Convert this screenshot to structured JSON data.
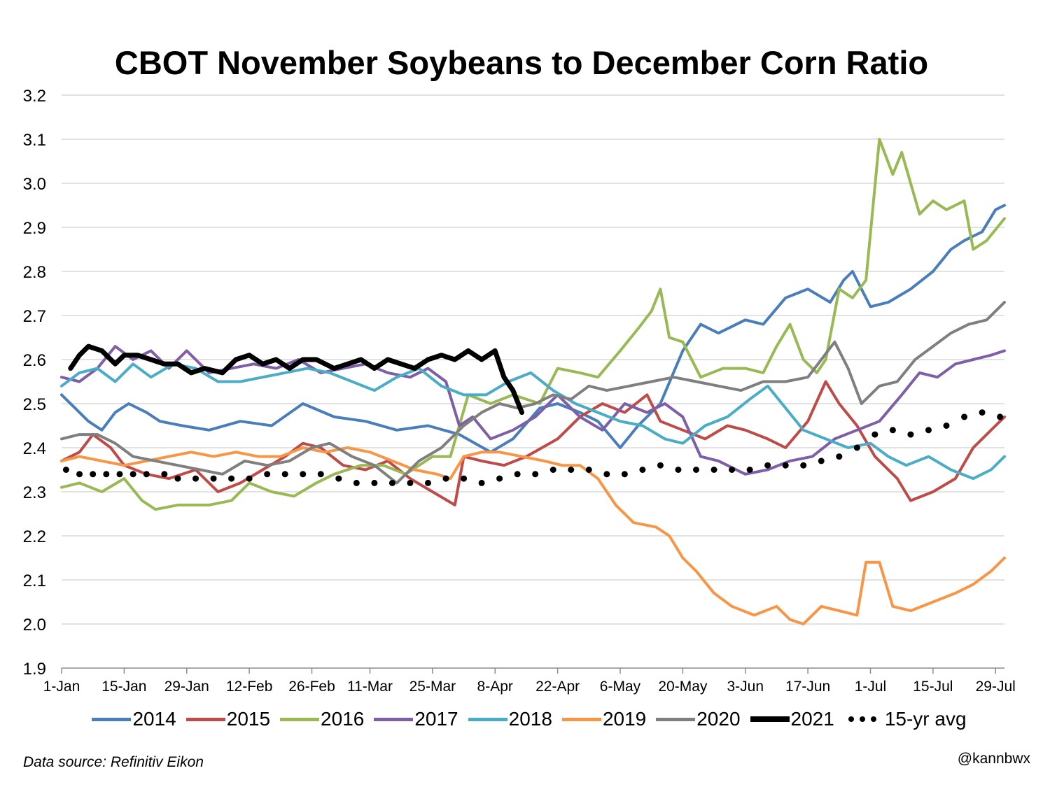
{
  "chart_data": {
    "type": "line",
    "title": "CBOT November Soybeans to December Corn Ratio",
    "ylim": [
      1.9,
      3.2
    ],
    "yticks": [
      "1.9",
      "2.0",
      "2.1",
      "2.2",
      "2.3",
      "2.4",
      "2.5",
      "2.6",
      "2.7",
      "2.8",
      "2.9",
      "3.0",
      "3.1",
      "3.2"
    ],
    "x_domain": [
      "1-Jan",
      "31-Jul"
    ],
    "xticks": [
      "1-Jan",
      "15-Jan",
      "29-Jan",
      "12-Feb",
      "26-Feb",
      "11-Mar",
      "25-Mar",
      "8-Apr",
      "22-Apr",
      "6-May",
      "20-May",
      "3-Jun",
      "17-Jun",
      "1-Jul",
      "15-Jul",
      "29-Jul"
    ],
    "grid": "horizontal",
    "legend_position": "bottom",
    "series": [
      {
        "name": "2014",
        "color": "#4A7EBB",
        "style": "line",
        "x": [
          "1-Jan",
          "4-Jan",
          "7-Jan",
          "10-Jan",
          "13-Jan",
          "16-Jan",
          "20-Jan",
          "23-Jan",
          "28-Jan",
          "3-Feb",
          "10-Feb",
          "17-Feb",
          "24-Feb",
          "3-Mar",
          "10-Mar",
          "17-Mar",
          "24-Mar",
          "31-Mar",
          "7-Apr",
          "12-Apr",
          "18-Apr",
          "22-Apr",
          "27-Apr",
          "1-May",
          "6-May",
          "10-May",
          "15-May",
          "20-May",
          "24-May",
          "28-May",
          "3-Jun",
          "7-Jun",
          "12-Jun",
          "17-Jun",
          "22-Jun",
          "25-Jun",
          "27-Jun",
          "1-Jul",
          "5-Jul",
          "10-Jul",
          "15-Jul",
          "19-Jul",
          "22-Jul",
          "26-Jul",
          "29-Jul",
          "31-Jul"
        ],
        "values": [
          2.52,
          2.49,
          2.46,
          2.44,
          2.48,
          2.5,
          2.48,
          2.46,
          2.45,
          2.44,
          2.46,
          2.45,
          2.5,
          2.47,
          2.46,
          2.44,
          2.45,
          2.43,
          2.39,
          2.42,
          2.49,
          2.5,
          2.48,
          2.46,
          2.4,
          2.45,
          2.5,
          2.62,
          2.68,
          2.66,
          2.69,
          2.68,
          2.74,
          2.76,
          2.73,
          2.78,
          2.8,
          2.72,
          2.73,
          2.76,
          2.8,
          2.85,
          2.87,
          2.89,
          2.94,
          2.95
        ]
      },
      {
        "name": "2015",
        "color": "#BE4B48",
        "style": "line",
        "x": [
          "1-Jan",
          "5-Jan",
          "8-Jan",
          "12-Jan",
          "15-Jan",
          "20-Jan",
          "25-Jan",
          "31-Jan",
          "5-Feb",
          "10-Feb",
          "15-Feb",
          "20-Feb",
          "24-Feb",
          "28-Feb",
          "5-Mar",
          "10-Mar",
          "15-Mar",
          "20-Mar",
          "25-Mar",
          "30-Mar",
          "1-Apr",
          "5-Apr",
          "10-Apr",
          "15-Apr",
          "22-Apr",
          "27-Apr",
          "2-May",
          "7-May",
          "12-May",
          "15-May",
          "20-May",
          "25-May",
          "30-May",
          "3-Jun",
          "8-Jun",
          "12-Jun",
          "17-Jun",
          "21-Jun",
          "24-Jun",
          "28-Jun",
          "2-Jul",
          "7-Jul",
          "10-Jul",
          "15-Jul",
          "20-Jul",
          "24-Jul",
          "29-Jul",
          "31-Jul"
        ],
        "values": [
          2.37,
          2.39,
          2.43,
          2.4,
          2.36,
          2.34,
          2.33,
          2.35,
          2.3,
          2.32,
          2.35,
          2.38,
          2.41,
          2.4,
          2.36,
          2.35,
          2.37,
          2.33,
          2.3,
          2.27,
          2.38,
          2.37,
          2.36,
          2.38,
          2.42,
          2.47,
          2.5,
          2.48,
          2.52,
          2.46,
          2.44,
          2.42,
          2.45,
          2.44,
          2.42,
          2.4,
          2.46,
          2.55,
          2.5,
          2.45,
          2.38,
          2.33,
          2.28,
          2.3,
          2.33,
          2.4,
          2.45,
          2.47
        ]
      },
      {
        "name": "2016",
        "color": "#98B954",
        "style": "line",
        "x": [
          "1-Jan",
          "5-Jan",
          "10-Jan",
          "15-Jan",
          "19-Jan",
          "22-Jan",
          "27-Jan",
          "3-Feb",
          "8-Feb",
          "12-Feb",
          "17-Feb",
          "22-Feb",
          "27-Feb",
          "3-Mar",
          "9-Mar",
          "14-Mar",
          "19-Mar",
          "25-Mar",
          "29-Mar",
          "2-Apr",
          "7-Apr",
          "12-Apr",
          "18-Apr",
          "22-Apr",
          "27-Apr",
          "1-May",
          "6-May",
          "10-May",
          "13-May",
          "15-May",
          "17-May",
          "20-May",
          "24-May",
          "29-May",
          "3-Jun",
          "7-Jun",
          "10-Jun",
          "13-Jun",
          "16-Jun",
          "19-Jun",
          "21-Jun",
          "24-Jun",
          "27-Jun",
          "30-Jun",
          "3-Jul",
          "6-Jul",
          "8-Jul",
          "12-Jul",
          "15-Jul",
          "18-Jul",
          "22-Jul",
          "24-Jul",
          "27-Jul",
          "31-Jul"
        ],
        "values": [
          2.31,
          2.32,
          2.3,
          2.33,
          2.28,
          2.26,
          2.27,
          2.27,
          2.28,
          2.32,
          2.3,
          2.29,
          2.32,
          2.34,
          2.36,
          2.36,
          2.34,
          2.38,
          2.38,
          2.52,
          2.5,
          2.52,
          2.5,
          2.58,
          2.57,
          2.56,
          2.62,
          2.67,
          2.71,
          2.76,
          2.65,
          2.64,
          2.56,
          2.58,
          2.58,
          2.57,
          2.63,
          2.68,
          2.6,
          2.57,
          2.6,
          2.76,
          2.74,
          2.78,
          3.1,
          3.02,
          3.07,
          2.93,
          2.96,
          2.94,
          2.96,
          2.85,
          2.87,
          2.92
        ]
      },
      {
        "name": "2017",
        "color": "#7E5EA6",
        "style": "line",
        "x": [
          "1-Jan",
          "5-Jan",
          "9-Jan",
          "13-Jan",
          "17-Jan",
          "21-Jan",
          "25-Jan",
          "29-Jan",
          "3-Feb",
          "8-Feb",
          "13-Feb",
          "18-Feb",
          "23-Feb",
          "28-Feb",
          "5-Mar",
          "10-Mar",
          "15-Mar",
          "20-Mar",
          "24-Mar",
          "28-Mar",
          "31-Mar",
          "3-Apr",
          "7-Apr",
          "12-Apr",
          "17-Apr",
          "22-Apr",
          "27-Apr",
          "2-May",
          "7-May",
          "12-May",
          "16-May",
          "20-May",
          "24-May",
          "28-May",
          "3-Jun",
          "8-Jun",
          "13-Jun",
          "18-Jun",
          "23-Jun",
          "28-Jun",
          "3-Jul",
          "8-Jul",
          "12-Jul",
          "16-Jul",
          "20-Jul",
          "24-Jul",
          "28-Jul",
          "31-Jul"
        ],
        "values": [
          2.56,
          2.55,
          2.58,
          2.63,
          2.6,
          2.62,
          2.58,
          2.62,
          2.57,
          2.58,
          2.59,
          2.58,
          2.6,
          2.57,
          2.58,
          2.59,
          2.57,
          2.56,
          2.58,
          2.55,
          2.45,
          2.47,
          2.42,
          2.44,
          2.47,
          2.52,
          2.47,
          2.44,
          2.5,
          2.48,
          2.5,
          2.47,
          2.38,
          2.37,
          2.34,
          2.35,
          2.37,
          2.38,
          2.42,
          2.44,
          2.46,
          2.52,
          2.57,
          2.56,
          2.59,
          2.6,
          2.61,
          2.62
        ]
      },
      {
        "name": "2018",
        "color": "#4BACC6",
        "style": "line",
        "x": [
          "1-Jan",
          "5-Jan",
          "9-Jan",
          "13-Jan",
          "17-Jan",
          "21-Jan",
          "26-Jan",
          "31-Jan",
          "5-Feb",
          "10-Feb",
          "15-Feb",
          "20-Feb",
          "25-Feb",
          "2-Mar",
          "7-Mar",
          "12-Mar",
          "17-Mar",
          "22-Mar",
          "27-Mar",
          "1-Apr",
          "6-Apr",
          "11-Apr",
          "16-Apr",
          "21-Apr",
          "26-Apr",
          "1-May",
          "6-May",
          "11-May",
          "16-May",
          "20-May",
          "25-May",
          "30-May",
          "4-Jun",
          "8-Jun",
          "12-Jun",
          "16-Jun",
          "21-Jun",
          "26-Jun",
          "1-Jul",
          "5-Jul",
          "9-Jul",
          "14-Jul",
          "19-Jul",
          "24-Jul",
          "28-Jul",
          "31-Jul"
        ],
        "values": [
          2.54,
          2.57,
          2.58,
          2.55,
          2.59,
          2.56,
          2.59,
          2.58,
          2.55,
          2.55,
          2.56,
          2.57,
          2.58,
          2.57,
          2.55,
          2.53,
          2.56,
          2.58,
          2.54,
          2.52,
          2.52,
          2.55,
          2.57,
          2.53,
          2.5,
          2.48,
          2.46,
          2.45,
          2.42,
          2.41,
          2.45,
          2.47,
          2.51,
          2.54,
          2.49,
          2.44,
          2.42,
          2.4,
          2.41,
          2.38,
          2.36,
          2.38,
          2.35,
          2.33,
          2.35,
          2.38
        ]
      },
      {
        "name": "2019",
        "color": "#F79646",
        "style": "line",
        "x": [
          "1-Jan",
          "5-Jan",
          "10-Jan",
          "15-Jan",
          "20-Jan",
          "25-Jan",
          "30-Jan",
          "4-Feb",
          "9-Feb",
          "14-Feb",
          "19-Feb",
          "24-Feb",
          "1-Mar",
          "6-Mar",
          "11-Mar",
          "16-Mar",
          "21-Mar",
          "26-Mar",
          "29-Mar",
          "1-Apr",
          "5-Apr",
          "9-Apr",
          "14-Apr",
          "19-Apr",
          "23-Apr",
          "27-Apr",
          "1-May",
          "5-May",
          "9-May",
          "14-May",
          "17-May",
          "20-May",
          "23-May",
          "27-May",
          "31-May",
          "5-Jun",
          "10-Jun",
          "13-Jun",
          "16-Jun",
          "20-Jun",
          "24-Jun",
          "28-Jun",
          "30-Jun",
          "3-Jul",
          "6-Jul",
          "10-Jul",
          "15-Jul",
          "20-Jul",
          "24-Jul",
          "28-Jul",
          "31-Jul"
        ],
        "values": [
          2.37,
          2.38,
          2.37,
          2.36,
          2.37,
          2.38,
          2.39,
          2.38,
          2.39,
          2.38,
          2.38,
          2.4,
          2.39,
          2.4,
          2.39,
          2.37,
          2.35,
          2.34,
          2.33,
          2.38,
          2.39,
          2.39,
          2.38,
          2.37,
          2.36,
          2.36,
          2.33,
          2.27,
          2.23,
          2.22,
          2.2,
          2.15,
          2.12,
          2.07,
          2.04,
          2.02,
          2.04,
          2.01,
          2.0,
          2.04,
          2.03,
          2.02,
          2.14,
          2.14,
          2.04,
          2.03,
          2.05,
          2.07,
          2.09,
          2.12,
          2.15
        ]
      },
      {
        "name": "2020",
        "color": "#7F7F7F",
        "style": "line",
        "x": [
          "1-Jan",
          "5-Jan",
          "9-Jan",
          "13-Jan",
          "17-Jan",
          "22-Jan",
          "27-Jan",
          "1-Feb",
          "6-Feb",
          "11-Feb",
          "16-Feb",
          "21-Feb",
          "26-Feb",
          "2-Mar",
          "7-Mar",
          "12-Mar",
          "17-Mar",
          "22-Mar",
          "27-Mar",
          "1-Apr",
          "5-Apr",
          "9-Apr",
          "13-Apr",
          "17-Apr",
          "21-Apr",
          "25-Apr",
          "29-Apr",
          "3-May",
          "8-May",
          "13-May",
          "18-May",
          "23-May",
          "28-May",
          "2-Jun",
          "7-Jun",
          "12-Jun",
          "17-Jun",
          "20-Jun",
          "23-Jun",
          "26-Jun",
          "29-Jun",
          "3-Jul",
          "7-Jul",
          "11-Jul",
          "15-Jul",
          "19-Jul",
          "23-Jul",
          "27-Jul",
          "31-Jul"
        ],
        "values": [
          2.42,
          2.43,
          2.43,
          2.41,
          2.38,
          2.37,
          2.36,
          2.35,
          2.34,
          2.37,
          2.36,
          2.37,
          2.4,
          2.41,
          2.38,
          2.36,
          2.32,
          2.37,
          2.4,
          2.45,
          2.48,
          2.5,
          2.49,
          2.5,
          2.52,
          2.51,
          2.54,
          2.53,
          2.54,
          2.55,
          2.56,
          2.55,
          2.54,
          2.53,
          2.55,
          2.55,
          2.56,
          2.6,
          2.64,
          2.58,
          2.5,
          2.54,
          2.55,
          2.6,
          2.63,
          2.66,
          2.68,
          2.69,
          2.73
        ]
      },
      {
        "name": "2021",
        "color": "#000000",
        "style": "thick",
        "x": [
          "3-Jan",
          "5-Jan",
          "7-Jan",
          "10-Jan",
          "13-Jan",
          "15-Jan",
          "18-Jan",
          "21-Jan",
          "24-Jan",
          "27-Jan",
          "30-Jan",
          "2-Feb",
          "6-Feb",
          "9-Feb",
          "12-Feb",
          "15-Feb",
          "18-Feb",
          "21-Feb",
          "24-Feb",
          "27-Feb",
          "3-Mar",
          "6-Mar",
          "9-Mar",
          "12-Mar",
          "15-Mar",
          "18-Mar",
          "21-Mar",
          "24-Mar",
          "27-Mar",
          "30-Mar",
          "2-Apr",
          "5-Apr",
          "8-Apr",
          "10-Apr",
          "12-Apr",
          "14-Apr"
        ],
        "values": [
          2.58,
          2.61,
          2.63,
          2.62,
          2.59,
          2.61,
          2.61,
          2.6,
          2.59,
          2.59,
          2.57,
          2.58,
          2.57,
          2.6,
          2.61,
          2.59,
          2.6,
          2.58,
          2.6,
          2.6,
          2.58,
          2.59,
          2.6,
          2.58,
          2.6,
          2.59,
          2.58,
          2.6,
          2.61,
          2.6,
          2.62,
          2.6,
          2.62,
          2.56,
          2.53,
          2.48
        ]
      },
      {
        "name": "15-yr avg",
        "color": "#000000",
        "style": "dots",
        "x": [
          "2-Jan",
          "5-Jan",
          "8-Jan",
          "11-Jan",
          "14-Jan",
          "17-Jan",
          "20-Jan",
          "24-Jan",
          "27-Jan",
          "31-Jan",
          "4-Feb",
          "8-Feb",
          "12-Feb",
          "16-Feb",
          "20-Feb",
          "24-Feb",
          "28-Feb",
          "4-Mar",
          "8-Mar",
          "12-Mar",
          "16-Mar",
          "20-Mar",
          "24-Mar",
          "28-Mar",
          "1-Apr",
          "5-Apr",
          "9-Apr",
          "13-Apr",
          "17-Apr",
          "21-Apr",
          "25-Apr",
          "29-Apr",
          "3-May",
          "7-May",
          "11-May",
          "15-May",
          "19-May",
          "23-May",
          "27-May",
          "31-May",
          "4-Jun",
          "8-Jun",
          "12-Jun",
          "16-Jun",
          "20-Jun",
          "24-Jun",
          "28-Jun",
          "2-Jul",
          "6-Jul",
          "10-Jul",
          "14-Jul",
          "18-Jul",
          "22-Jul",
          "26-Jul",
          "30-Jul"
        ],
        "values": [
          2.35,
          2.34,
          2.34,
          2.34,
          2.34,
          2.34,
          2.34,
          2.34,
          2.33,
          2.33,
          2.33,
          2.33,
          2.33,
          2.34,
          2.34,
          2.34,
          2.34,
          2.33,
          2.32,
          2.32,
          2.32,
          2.32,
          2.32,
          2.33,
          2.33,
          2.32,
          2.33,
          2.34,
          2.34,
          2.35,
          2.35,
          2.35,
          2.34,
          2.34,
          2.35,
          2.36,
          2.35,
          2.35,
          2.35,
          2.35,
          2.35,
          2.36,
          2.36,
          2.36,
          2.37,
          2.38,
          2.4,
          2.43,
          2.44,
          2.43,
          2.44,
          2.45,
          2.47,
          2.48,
          2.47
        ]
      }
    ]
  },
  "footer": {
    "source": "Data source: Refinitiv Eikon",
    "handle": "@kannbwx"
  }
}
